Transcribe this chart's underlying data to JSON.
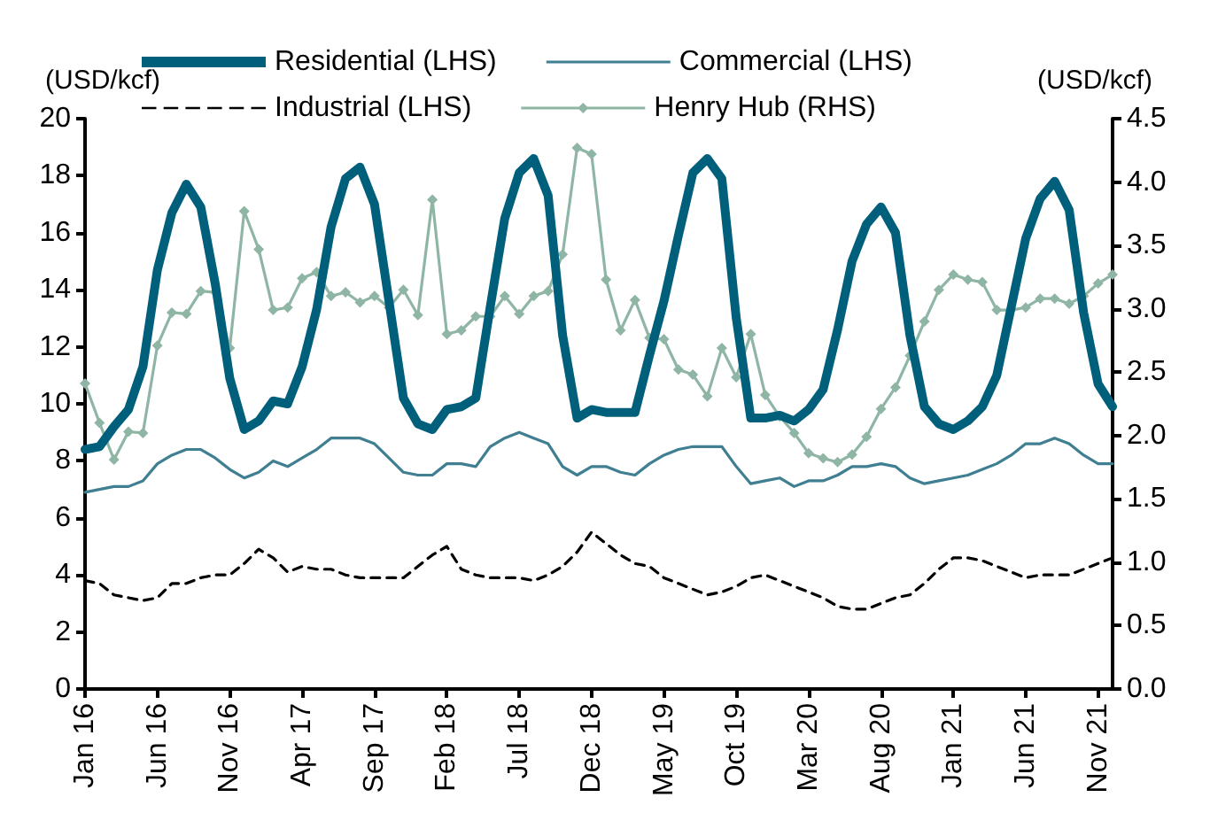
{
  "chart_data": {
    "type": "line",
    "ylabel": "(USD/kcf)",
    "y2label": "(USD/kcf)",
    "categories": [
      "Jan 16",
      null,
      null,
      null,
      null,
      "Jun 16",
      null,
      null,
      null,
      null,
      "Nov 16",
      null,
      null,
      null,
      null,
      "Apr 17",
      null,
      null,
      null,
      null,
      "Sep 17",
      null,
      null,
      null,
      null,
      "Feb 18",
      null,
      null,
      null,
      null,
      "Jul 18",
      null,
      null,
      null,
      null,
      "Dec 18",
      null,
      null,
      null,
      null,
      "May 19",
      null,
      null,
      null,
      null,
      "Oct 19",
      null,
      null,
      null,
      null,
      "Mar 20",
      null,
      null,
      null,
      null,
      "Aug 20",
      null,
      null,
      null,
      null,
      "Jan 21",
      null,
      null,
      null,
      null,
      "Jun 21",
      null,
      null,
      null,
      null,
      "Nov 21",
      null
    ],
    "series": [
      {
        "name": "Residential (LHS)",
        "color": "#005f7a",
        "line_style": "solid",
        "marker": "none",
        "values": [
          8.4,
          8.5,
          9.2,
          9.8,
          11.3,
          14.7,
          16.7,
          17.7,
          16.9,
          14.2,
          10.9,
          9.1,
          9.4,
          10.1,
          10.0,
          11.3,
          13.3,
          16.2,
          17.9,
          18.3,
          17.0,
          13.6,
          10.2,
          9.3,
          9.1,
          9.8,
          9.9,
          10.2,
          13.4,
          16.5,
          18.1,
          18.6,
          17.3,
          12.4,
          9.5,
          9.8,
          9.7,
          9.7,
          9.7,
          11.7,
          13.6,
          15.9,
          18.1,
          18.6,
          17.9,
          13.0,
          9.5,
          9.5,
          9.6,
          9.4,
          9.8,
          10.5,
          12.6,
          15.0,
          16.3,
          16.9,
          16.0,
          12.4,
          9.9,
          9.3,
          9.1,
          9.4,
          9.9,
          11.0,
          13.4,
          15.8,
          17.2,
          17.8,
          16.8,
          13.2,
          10.7,
          9.9
        ]
      },
      {
        "name": "Commercial (LHS)",
        "color": "#3f7f91",
        "line_style": "solid",
        "marker": "none",
        "values": [
          6.9,
          7.0,
          7.1,
          7.1,
          7.3,
          7.9,
          8.2,
          8.4,
          8.4,
          8.1,
          7.7,
          7.4,
          7.6,
          8.0,
          7.8,
          8.1,
          8.4,
          8.8,
          8.8,
          8.8,
          8.6,
          8.1,
          7.6,
          7.5,
          7.5,
          7.9,
          7.9,
          7.8,
          8.5,
          8.8,
          9.0,
          8.8,
          8.6,
          7.8,
          7.5,
          7.8,
          7.8,
          7.6,
          7.5,
          7.9,
          8.2,
          8.4,
          8.5,
          8.5,
          8.5,
          7.8,
          7.2,
          7.3,
          7.4,
          7.1,
          7.3,
          7.3,
          7.5,
          7.8,
          7.8,
          7.9,
          7.8,
          7.4,
          7.2,
          7.3,
          7.4,
          7.5,
          7.7,
          7.9,
          8.2,
          8.6,
          8.6,
          8.8,
          8.6,
          8.2,
          7.9,
          7.9
        ]
      },
      {
        "name": "Industrial (LHS)",
        "color": "#000000",
        "line_style": "dashed",
        "marker": "none",
        "values": [
          3.8,
          3.7,
          3.3,
          3.2,
          3.1,
          3.2,
          3.7,
          3.7,
          3.9,
          4.0,
          4.0,
          4.4,
          4.9,
          4.6,
          4.1,
          4.3,
          4.2,
          4.2,
          4.0,
          3.9,
          3.9,
          3.9,
          3.9,
          4.3,
          4.7,
          5.0,
          4.2,
          4.0,
          3.9,
          3.9,
          3.9,
          3.8,
          4.0,
          4.3,
          4.8,
          5.5,
          5.1,
          4.7,
          4.4,
          4.3,
          3.9,
          3.7,
          3.5,
          3.3,
          3.4,
          3.6,
          3.9,
          4.0,
          3.8,
          3.6,
          3.4,
          3.2,
          2.9,
          2.8,
          2.8,
          3.0,
          3.2,
          3.3,
          3.7,
          4.2,
          4.6,
          4.6,
          4.5,
          4.3,
          4.1,
          3.9,
          4.0,
          4.0,
          4.0,
          4.2,
          4.4,
          4.6
        ]
      },
      {
        "name": "Henry Hub (RHS)",
        "color": "#8fb5a5",
        "line_style": "solid",
        "marker": "diamond",
        "axis": "y2",
        "values": [
          2.41,
          2.1,
          1.81,
          2.03,
          2.02,
          2.71,
          2.97,
          2.96,
          3.14,
          3.13,
          2.69,
          3.77,
          3.47,
          2.99,
          3.01,
          3.24,
          3.29,
          3.1,
          3.13,
          3.05,
          3.1,
          3.01,
          3.15,
          2.95,
          3.86,
          2.8,
          2.83,
          2.94,
          2.94,
          3.1,
          2.96,
          3.1,
          3.14,
          3.43,
          4.27,
          4.22,
          3.23,
          2.83,
          3.07,
          2.77,
          2.76,
          2.52,
          2.48,
          2.31,
          2.69,
          2.46,
          2.8,
          2.32,
          2.15,
          2.02,
          1.86,
          1.82,
          1.79,
          1.85,
          1.99,
          2.21,
          2.38,
          2.63,
          2.9,
          3.15,
          3.27,
          3.23,
          3.21,
          2.99,
          2.99,
          3.01,
          3.08,
          3.08,
          3.04,
          3.1,
          3.2,
          3.27
        ]
      }
    ],
    "ylim": [
      0,
      20
    ],
    "yticks": [
      0,
      2,
      4,
      6,
      8,
      10,
      12,
      14,
      16,
      18,
      20
    ],
    "y2lim": [
      0,
      4.5
    ],
    "y2ticks": [
      {
        "value": 0,
        "label": "0.0"
      },
      0.5,
      {
        "value": 1,
        "label": "1.0"
      },
      1.5,
      {
        "value": 2,
        "label": "2.0"
      },
      2.5,
      {
        "value": 3,
        "label": "3.0"
      },
      3.5,
      {
        "value": 4,
        "label": "4.0"
      },
      4.5
    ],
    "grid": false,
    "legend": "top"
  }
}
